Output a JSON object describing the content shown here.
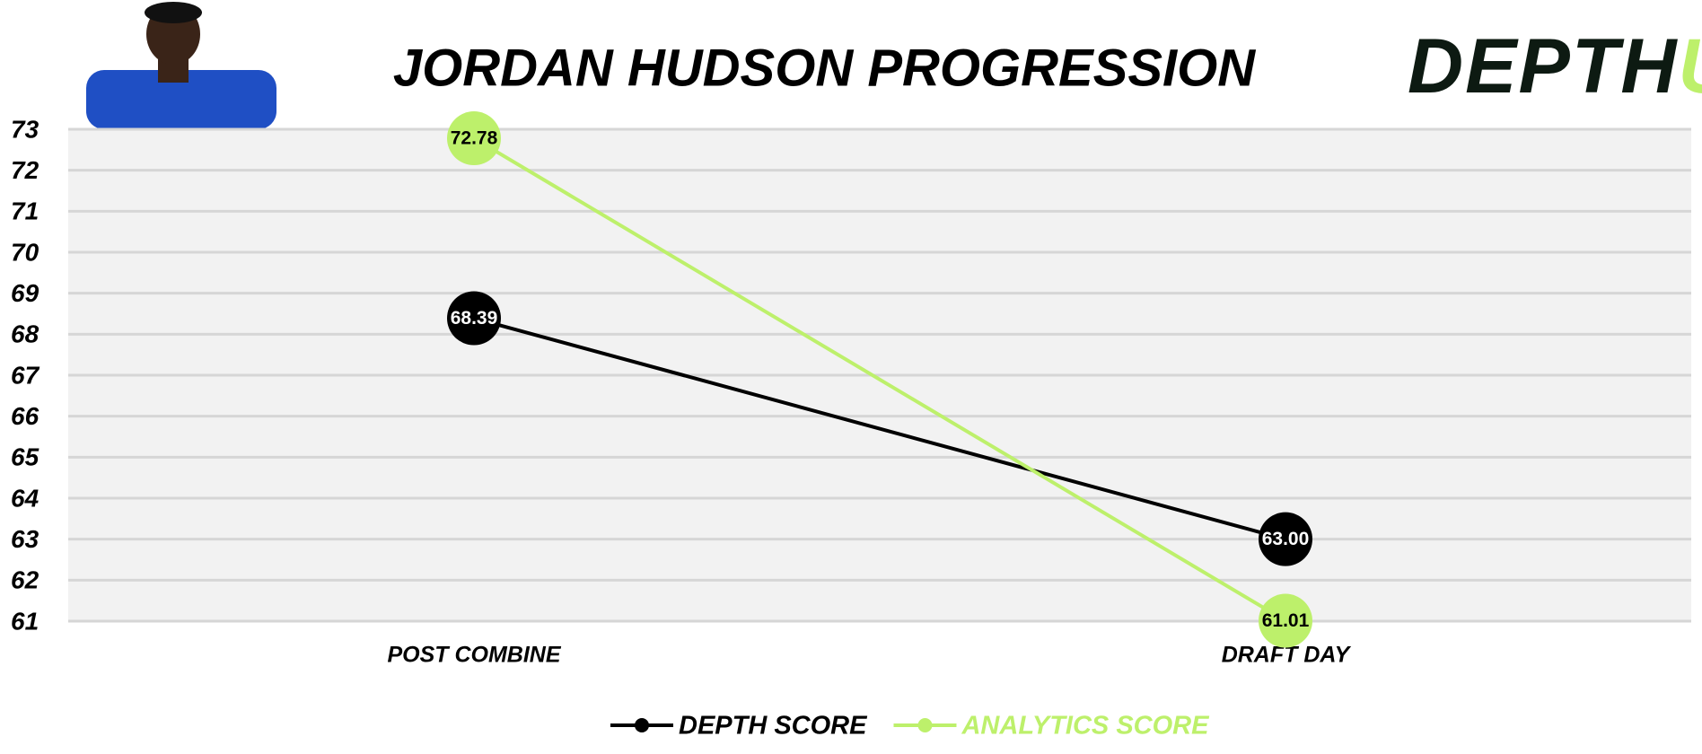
{
  "chart_data": {
    "type": "line",
    "title": "JORDAN HUDSON PROGRESSION",
    "categories": [
      "POST COMBINE",
      "DRAFT DAY"
    ],
    "series": [
      {
        "name": "DEPTH SCORE",
        "color": "#000000",
        "values": [
          68.39,
          63.0
        ],
        "value_labels": [
          "68.39",
          "63.00"
        ]
      },
      {
        "name": "ANALYTICS SCORE",
        "color": "#bdf06b",
        "values": [
          72.78,
          61.01
        ],
        "value_labels": [
          "72.78",
          "61.01"
        ]
      }
    ],
    "ylim": [
      61,
      73
    ],
    "yticks": [
      61,
      62,
      63,
      64,
      65,
      66,
      67,
      68,
      69,
      70,
      71,
      72,
      73
    ],
    "grid": true,
    "legend": "bottom"
  },
  "logo": {
    "text": "DEPTH",
    "accent": "U"
  }
}
